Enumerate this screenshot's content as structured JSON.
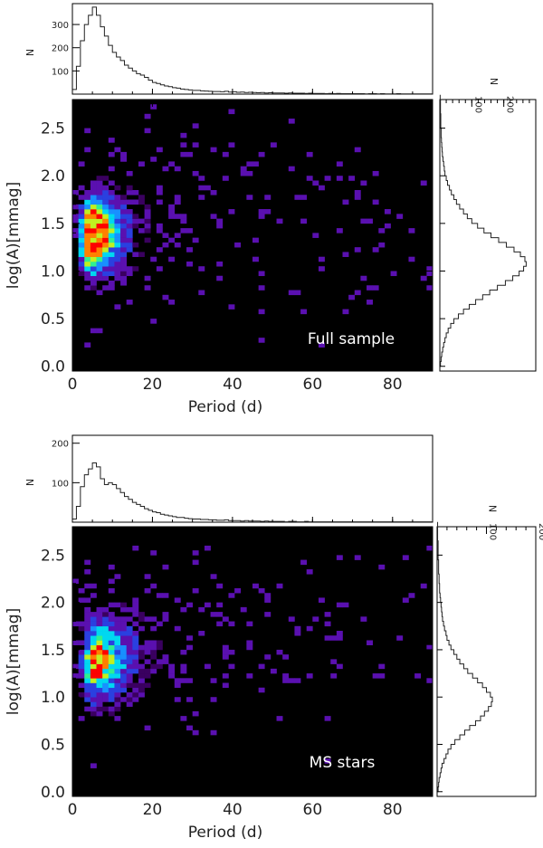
{
  "chart_data": [
    {
      "type": "heatmap",
      "panel": "top",
      "label": "Full sample",
      "xlabel": "Period (d)",
      "ylabel": "log(A)[mmag]",
      "xlim": [
        0,
        90
      ],
      "ylim": [
        -0.05,
        2.8
      ],
      "xticks": [
        0,
        20,
        40,
        60,
        80
      ],
      "yticks": [
        0.0,
        0.5,
        1.0,
        1.5,
        2.0,
        2.5
      ],
      "bin_width_period": 1.5,
      "bin_width_logA": 0.05,
      "peak_period": 5,
      "peak_logA": 1.35,
      "colors": [
        "#000000",
        "#3a0060",
        "#5a10b0",
        "#2a40e0",
        "#1890ff",
        "#00d8f0",
        "#30f090",
        "#c0f020",
        "#ff8000",
        "#ff0000"
      ],
      "top_histogram": {
        "ylabel": "N",
        "yticks": [
          100,
          200,
          300
        ],
        "ylim": [
          0,
          390
        ],
        "bin_width": 1,
        "counts": [
          20,
          120,
          230,
          300,
          340,
          375,
          340,
          290,
          250,
          210,
          180,
          160,
          145,
          125,
          112,
          100,
          88,
          82,
          72,
          60,
          50,
          46,
          40,
          35,
          32,
          28,
          26,
          22,
          20,
          18,
          16,
          16,
          14,
          13,
          12,
          11,
          11,
          10,
          12,
          9,
          10,
          8,
          9,
          7,
          8,
          7,
          6,
          7,
          5,
          6,
          5,
          5,
          5,
          4,
          5,
          4,
          4,
          4,
          3,
          4,
          3,
          3,
          3,
          2,
          3,
          2,
          3,
          2,
          2,
          2,
          2,
          2,
          2,
          1,
          2,
          2,
          1,
          2,
          1,
          1,
          1,
          2,
          1,
          1,
          1,
          1,
          1,
          1,
          1,
          1
        ]
      },
      "right_histogram": {
        "xlabel": "N",
        "xticks": [
          100,
          200
        ],
        "xlim": [
          0,
          300
        ],
        "bin_width": 0.05,
        "counts": [
          2,
          4,
          6,
          9,
          12,
          16,
          20,
          26,
          34,
          44,
          58,
          74,
          92,
          112,
          134,
          156,
          180,
          205,
          228,
          248,
          262,
          270,
          266,
          252,
          232,
          208,
          184,
          160,
          138,
          118,
          100,
          86,
          74,
          62,
          52,
          44,
          36,
          30,
          24,
          20,
          16,
          14,
          12,
          10,
          8,
          7,
          6,
          5,
          4,
          4,
          3,
          3,
          3,
          2,
          2,
          2,
          1
        ]
      }
    },
    {
      "type": "heatmap",
      "panel": "bottom",
      "label": "MS stars",
      "xlabel": "Period (d)",
      "ylabel": "log(A)[mmag]",
      "xlim": [
        0,
        90
      ],
      "ylim": [
        -0.05,
        2.8
      ],
      "xticks": [
        0,
        20,
        40,
        60,
        80
      ],
      "yticks": [
        0.0,
        0.5,
        1.0,
        1.5,
        2.0,
        2.5
      ],
      "bin_width_period": 1.5,
      "bin_width_logA": 0.05,
      "peak_period": 6,
      "peak_logA": 1.35,
      "colors": [
        "#000000",
        "#3a0060",
        "#5a10b0",
        "#2a40e0",
        "#1890ff",
        "#00d8f0",
        "#30f090",
        "#c0f020",
        "#ff8000",
        "#ff0000"
      ],
      "top_histogram": {
        "ylabel": "N",
        "yticks": [
          100,
          200
        ],
        "ylim": [
          0,
          220
        ],
        "bin_width": 1,
        "counts": [
          8,
          40,
          90,
          120,
          135,
          150,
          140,
          110,
          95,
          100,
          95,
          85,
          75,
          65,
          58,
          50,
          45,
          40,
          34,
          30,
          26,
          24,
          20,
          18,
          16,
          14,
          12,
          12,
          10,
          9,
          8,
          8,
          7,
          7,
          6,
          6,
          5,
          5,
          6,
          4,
          4,
          4,
          3,
          4,
          3,
          3,
          3,
          2,
          3,
          2,
          2,
          2,
          2,
          1,
          2,
          2,
          1,
          1,
          2,
          1,
          1,
          1,
          1,
          1,
          1,
          1,
          1,
          1,
          1,
          1,
          1,
          1,
          1,
          1,
          1,
          1,
          1,
          1,
          1,
          1,
          1,
          1,
          1,
          1,
          1,
          1,
          1,
          1,
          1,
          1
        ]
      },
      "right_histogram": {
        "xlabel": "N",
        "xticks": [
          100,
          200
        ],
        "xlim": [
          0,
          200
        ],
        "bin_width": 0.05,
        "counts": [
          2,
          3,
          4,
          6,
          8,
          10,
          14,
          18,
          22,
          28,
          36,
          46,
          56,
          66,
          78,
          88,
          96,
          104,
          110,
          112,
          108,
          100,
          92,
          82,
          72,
          62,
          54,
          46,
          40,
          34,
          28,
          24,
          20,
          18,
          15,
          13,
          11,
          10,
          9,
          8,
          7,
          6,
          5,
          5,
          4,
          4,
          3,
          3,
          3,
          2,
          2,
          2,
          2,
          1,
          1,
          1,
          1
        ]
      }
    }
  ]
}
